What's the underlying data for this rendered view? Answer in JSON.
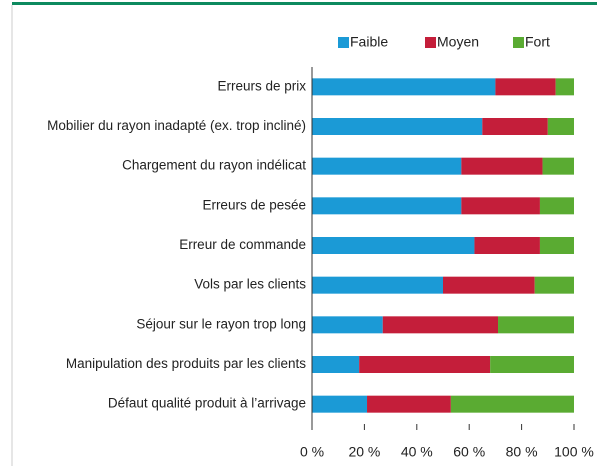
{
  "chart_data": {
    "type": "stacked_barh",
    "categories": [
      "Erreurs de prix",
      "Mobilier du rayon inadapté (ex. trop incliné)",
      "Chargement du rayon indélicat",
      "Erreurs de pesée",
      "Erreur de commande",
      "Vols par les clients",
      "Séjour sur le rayon trop long",
      "Manipulation des produits par les clients",
      "Défaut qualité produit à l’arrivage"
    ],
    "series": [
      {
        "name": "Faible",
        "color": "#1b9ad6",
        "values": [
          70,
          65,
          57,
          57,
          62,
          50,
          27,
          18,
          21
        ]
      },
      {
        "name": "Moyen",
        "color": "#c41e3a",
        "values": [
          23,
          25,
          31,
          30,
          25,
          35,
          44,
          50,
          32
        ]
      },
      {
        "name": "Fort",
        "color": "#5aab32",
        "values": [
          7,
          10,
          12,
          13,
          13,
          15,
          29,
          32,
          47
        ]
      }
    ],
    "xlim": [
      0,
      100
    ],
    "xticks": [
      {
        "value": 0,
        "label": "0 %"
      },
      {
        "value": 20,
        "label": "20 %"
      },
      {
        "value": 40,
        "label": "40 %"
      },
      {
        "value": 60,
        "label": "60 %"
      },
      {
        "value": 80,
        "label": "80 %"
      },
      {
        "value": 100,
        "label": "100 %"
      }
    ],
    "legend": "top"
  }
}
